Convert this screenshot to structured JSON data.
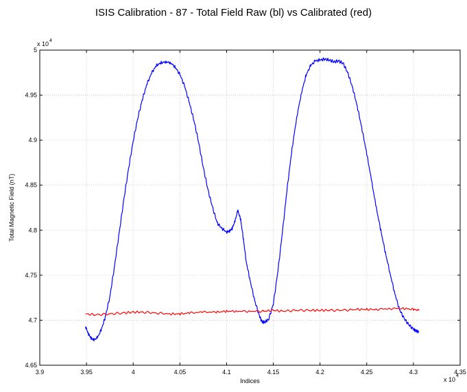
{
  "chart_data": {
    "type": "line",
    "title": "ISIS Calibration - 87 - Total Field Raw (bl) vs Calibrated (red)",
    "xlabel": "Indices",
    "ylabel": "Total Magnetic Field (nT)",
    "x_multiplier": "x 10",
    "x_multiplier_exp": "4",
    "y_multiplier": "x 10",
    "y_multiplier_exp": "4",
    "xlim": [
      3.9,
      4.35
    ],
    "ylim": [
      4.65,
      5.0
    ],
    "xticks": [
      "3.9",
      "3.95",
      "4",
      "4.05",
      "4.1",
      "4.15",
      "4.2",
      "4.25",
      "4.3",
      "4.35"
    ],
    "yticks": [
      "4.65",
      "4.7",
      "4.75",
      "4.8",
      "4.85",
      "4.9",
      "4.95",
      "5"
    ],
    "grid": true,
    "series": [
      {
        "color": "#0000ff",
        "x": [
          3.949,
          3.952,
          3.955,
          3.958,
          3.962,
          3.966,
          3.97,
          3.975,
          3.98,
          3.985,
          3.99,
          3.995,
          4.0,
          4.005,
          4.01,
          4.015,
          4.02,
          4.025,
          4.03,
          4.035,
          4.04,
          4.045,
          4.05,
          4.055,
          4.06,
          4.065,
          4.07,
          4.075,
          4.08,
          4.085,
          4.09,
          4.095,
          4.1,
          4.103,
          4.106,
          4.109,
          4.112,
          4.115,
          4.118,
          4.121,
          4.125,
          4.13,
          4.135,
          4.138,
          4.141,
          4.145,
          4.15,
          4.155,
          4.16,
          4.165,
          4.17,
          4.175,
          4.18,
          4.185,
          4.19,
          4.195,
          4.2,
          4.205,
          4.21,
          4.215,
          4.22,
          4.225,
          4.23,
          4.235,
          4.24,
          4.245,
          4.25,
          4.255,
          4.26,
          4.265,
          4.27,
          4.275,
          4.28,
          4.285,
          4.29,
          4.295,
          4.3,
          4.303,
          4.306
        ],
        "values": [
          4.693,
          4.685,
          4.68,
          4.678,
          4.681,
          4.69,
          4.703,
          4.726,
          4.76,
          4.797,
          4.834,
          4.868,
          4.899,
          4.925,
          4.946,
          4.963,
          4.975,
          4.983,
          4.986,
          4.987,
          4.986,
          4.981,
          4.973,
          4.96,
          4.942,
          4.922,
          4.898,
          4.87,
          4.845,
          4.825,
          4.808,
          4.802,
          4.798,
          4.799,
          4.802,
          4.81,
          4.822,
          4.812,
          4.79,
          4.765,
          4.745,
          4.722,
          4.705,
          4.698,
          4.698,
          4.701,
          4.718,
          4.755,
          4.8,
          4.848,
          4.89,
          4.925,
          4.952,
          4.972,
          4.983,
          4.988,
          4.989,
          4.99,
          4.989,
          4.987,
          4.988,
          4.985,
          4.974,
          4.958,
          4.937,
          4.912,
          4.885,
          4.856,
          4.826,
          4.8,
          4.775,
          4.752,
          4.73,
          4.712,
          4.702,
          4.695,
          4.69,
          4.688,
          4.687
        ]
      },
      {
        "color": "#ff0000",
        "x": [
          3.949,
          3.96,
          3.975,
          3.99,
          4.0,
          4.01,
          4.025,
          4.04,
          4.05,
          4.06,
          4.075,
          4.09,
          4.1,
          4.11,
          4.125,
          4.14,
          4.15,
          4.16,
          4.175,
          4.19,
          4.2,
          4.21,
          4.225,
          4.24,
          4.25,
          4.26,
          4.275,
          4.29,
          4.3,
          4.306
        ],
        "values": [
          4.707,
          4.706,
          4.707,
          4.708,
          4.709,
          4.709,
          4.708,
          4.707,
          4.707,
          4.708,
          4.709,
          4.709,
          4.71,
          4.71,
          4.71,
          4.71,
          4.711,
          4.71,
          4.711,
          4.711,
          4.711,
          4.711,
          4.711,
          4.712,
          4.712,
          4.712,
          4.713,
          4.713,
          4.712,
          4.711
        ]
      }
    ]
  }
}
